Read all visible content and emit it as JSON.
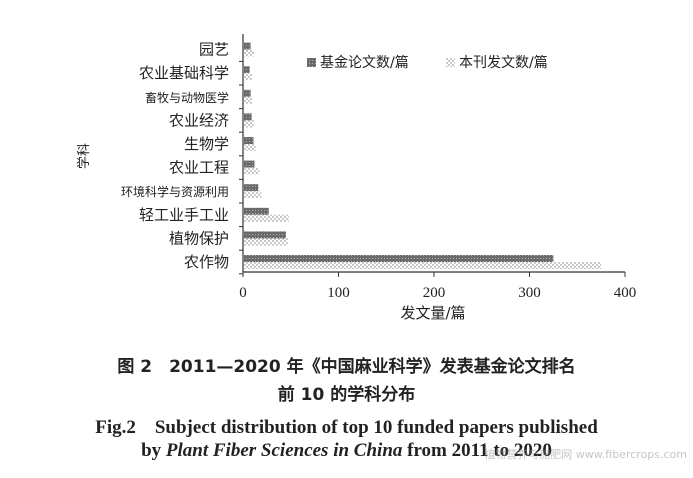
{
  "chart_data": {
    "type": "bar",
    "orientation": "horizontal",
    "categories": [
      "农作物",
      "植物保护",
      "轻工业手工业",
      "环境科学与资源利用",
      "农业工程",
      "生物学",
      "农业经济",
      "畜牧与动物医学",
      "农业基础科学",
      "园艺"
    ],
    "series": [
      {
        "name": "基金论文数/篇",
        "values": [
          325,
          45,
          27,
          16,
          12,
          11,
          9,
          8,
          7,
          8
        ]
      },
      {
        "name": "本刊发文数/篇",
        "values": [
          375,
          47,
          48,
          19,
          17,
          13,
          12,
          10,
          9,
          12
        ]
      }
    ],
    "xlim": [
      0,
      400
    ],
    "xticks": [
      0,
      100,
      200,
      300,
      400
    ],
    "xlabel": "发文量/篇",
    "ylabel": "学科",
    "legend_position": "top-right",
    "grid": false
  },
  "caption": {
    "cn_line1": "图 2　2011—2020 年《中国麻业科学》发表基金论文排名",
    "cn_line2": "前 10 的学科分布",
    "en_line1": "Fig.2　Subject distribution of top 10 funded papers published",
    "en_line2_prefix": "by ",
    "en_line2_italic": "Plant Fiber Sciences in China",
    "en_line2_suffix": " from 2011 to 2020"
  },
  "watermark": "植物营养与施肥网 www.fibercrops.com"
}
